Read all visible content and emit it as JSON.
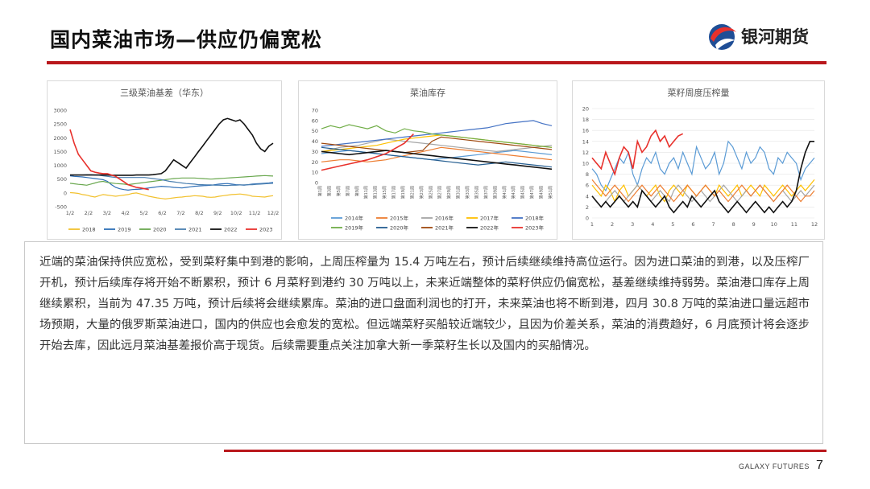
{
  "slide": {
    "title": "国内菜油市场—供应仍偏宽松",
    "logo_text": "银河期货",
    "footer": "GALAXY FUTURES",
    "page_number": "7",
    "body_text": "近端的菜油保持供应宽松，受到菜籽集中到港的影响，上周压榨量为 15.4 万吨左右，预计后续继续维持高位运行。因为进口菜油的到港，以及压榨厂开机，预计后续库存将开始不断累积，预计 6 月菜籽到港约 30 万吨以上，未来近端整体的菜籽供应仍偏宽松，基差继续维持弱势。菜油港口库存上周继续累积，当前为 47.35 万吨，预计后续将会继续累库。菜油的进口盘面利润也的打开，未来菜油也将不断到港，四月 30.8 万吨的菜油进口量远超市场预期，大量的俄罗斯菜油进口，国内的供应也会愈发的宽松。但远端菜籽买船较近端较少，且因为价差关系，菜油的消费趋好，6 月底预计将会逐步开始去库，因此远月菜油基差报价高于现货。后续需要重点关注加拿大新一季菜籽生长以及国内的买船情况。",
    "colors": {
      "accent": "#b9171c",
      "logo_blue": "#1f4e96"
    }
  },
  "chart_data": [
    {
      "type": "line",
      "title": "三级菜油基差（华东）",
      "x_ticks": [
        "1/2",
        "2/2",
        "3/2",
        "4/2",
        "5/2",
        "6/2",
        "7/2",
        "8/2",
        "9/2",
        "10/2",
        "11/2",
        "12/2"
      ],
      "y_ticks": [
        "3000",
        "2500",
        "2000",
        "1500",
        "1000",
        "500",
        "0",
        "-500"
      ],
      "ylim": [
        -500,
        3000
      ],
      "legend_position": "bottom",
      "series": [
        {
          "name": "2018",
          "color": "#f2c12e",
          "values": [
            10,
            0,
            -20,
            -60,
            -80,
            -120,
            -150,
            -100,
            -60,
            -80,
            -100,
            -120,
            -100,
            -80,
            -60,
            -20,
            0,
            -40,
            -80,
            -120,
            -150,
            -180,
            -200,
            -220,
            -200,
            -180,
            -160,
            -150,
            -130,
            -120,
            -100,
            -110,
            -120,
            -150,
            -160,
            -150,
            -120,
            -100,
            -80,
            -60,
            -50,
            -40,
            -60,
            -80,
            -120,
            -130,
            -140,
            -150,
            -120,
            -100
          ]
        },
        {
          "name": "2019",
          "color": "#2e6fb7",
          "values": [
            620,
            600,
            590,
            580,
            560,
            540,
            520,
            500,
            480,
            420,
            300,
            200,
            150,
            120,
            100,
            120,
            130,
            140,
            160,
            180,
            200,
            220,
            240,
            230,
            220,
            200,
            190,
            180,
            200,
            220,
            240,
            250,
            260,
            270,
            280,
            300,
            320,
            330,
            340,
            320,
            300,
            290,
            280,
            300,
            320,
            330,
            340,
            350,
            360,
            380
          ]
        },
        {
          "name": "2020",
          "color": "#6aa84f",
          "values": [
            350,
            330,
            310,
            300,
            280,
            320,
            360,
            400,
            420,
            380,
            360,
            340,
            330,
            320,
            300,
            320,
            340,
            360,
            380,
            400,
            420,
            440,
            460,
            480,
            500,
            520,
            530,
            540,
            540,
            540,
            540,
            530,
            520,
            510,
            500,
            510,
            520,
            530,
            540,
            550,
            560,
            570,
            580,
            590,
            600,
            610,
            620,
            630,
            620,
            610
          ]
        },
        {
          "name": "2021",
          "color": "#4a7fb0",
          "values": [
            650,
            650,
            650,
            650,
            660,
            660,
            650,
            640,
            620,
            600,
            580,
            560,
            560,
            560,
            560,
            560,
            560,
            560,
            560,
            540,
            520,
            500,
            480,
            450,
            420,
            400,
            380,
            360,
            340,
            330,
            320,
            300,
            300,
            290,
            290,
            280,
            280,
            270,
            270,
            280,
            280,
            290,
            290,
            300,
            300,
            310,
            320,
            330,
            340,
            350
          ]
        },
        {
          "name": "2022",
          "color": "#111111",
          "values": [
            650,
            650,
            650,
            650,
            650,
            650,
            650,
            650,
            650,
            650,
            640,
            640,
            640,
            640,
            640,
            640,
            650,
            650,
            650,
            650,
            660,
            680,
            700,
            800,
            1000,
            1200,
            1100,
            1000,
            900,
            1100,
            1300,
            1500,
            1700,
            1900,
            2100,
            2300,
            2500,
            2650,
            2700,
            2650,
            2600,
            2650,
            2500,
            2300,
            2100,
            1800,
            1600,
            1500,
            1700,
            1800
          ]
        },
        {
          "name": "2023",
          "color": "#e8312c",
          "values": [
            2300,
            1800,
            1400,
            1200,
            1000,
            800,
            750,
            720,
            700,
            700,
            650,
            600,
            500,
            400,
            300,
            250,
            200,
            180,
            150,
            120
          ]
        }
      ]
    },
    {
      "type": "line",
      "title": "菜油库存",
      "x_ticks": [
        "第1周",
        "第3周",
        "第5周",
        "第7周",
        "第9周",
        "第11周",
        "第13周",
        "第15周",
        "第17周",
        "第19周",
        "第21周",
        "第23周",
        "第25周",
        "第27周",
        "第29周",
        "第31周",
        "第33周",
        "第35周",
        "第37周",
        "第39周",
        "第41周",
        "第43周",
        "第45周",
        "第47周",
        "第49周",
        "第51周"
      ],
      "y_ticks": [
        "70",
        "60",
        "50",
        "40",
        "30",
        "20",
        "10",
        "0"
      ],
      "ylim": [
        0,
        70
      ],
      "legend_position": "bottom",
      "series": [
        {
          "name": "2014年",
          "color": "#5b9bd5",
          "values": [
            28,
            29,
            30,
            31,
            30,
            29,
            28,
            27,
            26,
            25,
            24,
            23,
            22,
            23,
            24,
            25,
            26,
            27,
            28,
            29,
            30,
            31,
            30,
            29,
            28,
            27
          ]
        },
        {
          "name": "2015年",
          "color": "#ed7d31",
          "values": [
            20,
            21,
            22,
            22,
            21,
            20,
            21,
            22,
            24,
            26,
            28,
            30,
            32,
            34,
            33,
            32,
            31,
            30,
            29,
            28,
            27,
            26,
            25,
            24,
            23,
            22
          ]
        },
        {
          "name": "2016年",
          "color": "#a5a5a5",
          "values": [
            30,
            32,
            34,
            35,
            36,
            38,
            40,
            42,
            41,
            40,
            39,
            38,
            37,
            36,
            35,
            34,
            33,
            32,
            31,
            30,
            31,
            32,
            33,
            34,
            35,
            36
          ]
        },
        {
          "name": "2017年",
          "color": "#ffc000",
          "values": [
            30,
            31,
            32,
            33,
            34,
            35,
            36,
            38,
            40,
            42,
            43,
            44,
            45,
            46,
            45,
            44,
            43,
            42,
            41,
            40,
            39,
            38,
            37,
            36,
            35,
            34
          ]
        },
        {
          "name": "2018年",
          "color": "#4472c4",
          "values": [
            35,
            36,
            37,
            38,
            39,
            40,
            41,
            42,
            43,
            44,
            45,
            46,
            47,
            48,
            49,
            50,
            51,
            52,
            53,
            55,
            57,
            58,
            59,
            60,
            57,
            55
          ]
        },
        {
          "name": "2019年",
          "color": "#70ad47",
          "values": [
            52,
            55,
            53,
            56,
            54,
            52,
            55,
            50,
            48,
            52,
            50,
            49,
            47,
            46,
            45,
            44,
            43,
            42,
            41,
            40,
            39,
            38,
            37,
            36,
            35,
            34
          ]
        },
        {
          "name": "2020年",
          "color": "#255e91",
          "values": [
            34,
            33,
            32,
            31,
            30,
            29,
            28,
            27,
            26,
            25,
            24,
            23,
            22,
            21,
            20,
            19,
            18,
            17,
            18,
            19,
            20,
            19,
            18,
            17,
            16,
            15
          ]
        },
        {
          "name": "2021年",
          "color": "#9e480e",
          "values": [
            38,
            37,
            36,
            35,
            34,
            33,
            32,
            31,
            30,
            29,
            30,
            31,
            40,
            44,
            43,
            42,
            41,
            40,
            39,
            38,
            37,
            36,
            35,
            34,
            33,
            32
          ]
        },
        {
          "name": "2022年",
          "color": "#111111",
          "values": [
            30,
            29,
            28,
            27,
            28,
            29,
            30,
            31,
            30,
            29,
            28,
            27,
            26,
            25,
            24,
            23,
            22,
            21,
            20,
            19,
            18,
            17,
            16,
            15,
            14,
            13
          ]
        },
        {
          "name": "2023年",
          "color": "#e8312c",
          "values": [
            12,
            14,
            16,
            18,
            20,
            22,
            25,
            28,
            33,
            38,
            47
          ]
        }
      ]
    },
    {
      "type": "line",
      "title": "菜籽周度压榨量",
      "x_ticks": [
        "1",
        "2",
        "3",
        "4",
        "5",
        "6",
        "7",
        "8",
        "9",
        "10",
        "11",
        "12"
      ],
      "y_ticks": [
        "20",
        "18",
        "16",
        "14",
        "12",
        "10",
        "8",
        "6",
        "4",
        "2",
        "0"
      ],
      "ylim": [
        0,
        20
      ],
      "legend_position": "none",
      "series": [
        {
          "name": "",
          "color": "#5b9bd5",
          "values": [
            9,
            8,
            6,
            5,
            7,
            9,
            11,
            10,
            12,
            8,
            6,
            9,
            11,
            10,
            12,
            9,
            8,
            10,
            11,
            9,
            12,
            10,
            8,
            13,
            11,
            9,
            10,
            12,
            8,
            10,
            14,
            13,
            11,
            9,
            12,
            10,
            11,
            13,
            12,
            9,
            8,
            11,
            10,
            12,
            11,
            10,
            7,
            9,
            10,
            11
          ]
        },
        {
          "name": "",
          "color": "#ffc000",
          "values": [
            6,
            5,
            4,
            6,
            5,
            3,
            5,
            6,
            4,
            5,
            6,
            5,
            4,
            5,
            6,
            4,
            3,
            5,
            6,
            5,
            4,
            6,
            5,
            4,
            5,
            6,
            5,
            4,
            6,
            5,
            4,
            5,
            6,
            4,
            5,
            6,
            5,
            4,
            6,
            5,
            4,
            5,
            6,
            5,
            4,
            5,
            6,
            5,
            6,
            7
          ]
        },
        {
          "name": "",
          "color": "#a5a5a5",
          "values": [
            4,
            3,
            2,
            3,
            4,
            5,
            4,
            3,
            4,
            5,
            6,
            5,
            4,
            3,
            4,
            5,
            4,
            3,
            5,
            6,
            5,
            4,
            3,
            4,
            5,
            4,
            3,
            4,
            5,
            6,
            5,
            4,
            3,
            4,
            5,
            4,
            5,
            6,
            5,
            4,
            3,
            4,
            5,
            4,
            3,
            4,
            5,
            4,
            5,
            6
          ]
        },
        {
          "name": "",
          "color": "#ed7d31",
          "values": [
            7,
            6,
            5,
            4,
            5,
            6,
            5,
            4,
            3,
            4,
            5,
            6,
            5,
            4,
            5,
            6,
            5,
            4,
            3,
            4,
            5,
            6,
            5,
            4,
            5,
            6,
            5,
            4,
            5,
            4,
            3,
            4,
            5,
            6,
            5,
            4,
            5,
            6,
            5,
            4,
            3,
            4,
            5,
            6,
            5,
            4,
            3,
            4,
            4,
            5
          ]
        },
        {
          "name": "",
          "color": "#111111",
          "values": [
            4,
            3,
            2,
            3,
            2,
            3,
            4,
            3,
            2,
            3,
            2,
            5,
            4,
            3,
            2,
            3,
            4,
            2,
            1,
            2,
            3,
            2,
            4,
            3,
            2,
            3,
            4,
            5,
            3,
            2,
            1,
            2,
            3,
            2,
            1,
            2,
            3,
            2,
            1,
            2,
            1,
            2,
            3,
            2,
            3,
            5,
            9,
            12,
            14,
            14
          ]
        },
        {
          "name": "",
          "color": "#e8312c",
          "values": [
            11,
            10,
            9,
            12,
            10,
            8,
            11,
            13,
            12,
            9,
            14,
            12,
            13,
            15,
            16,
            14,
            15,
            13,
            14,
            15,
            15.4
          ]
        }
      ]
    }
  ]
}
